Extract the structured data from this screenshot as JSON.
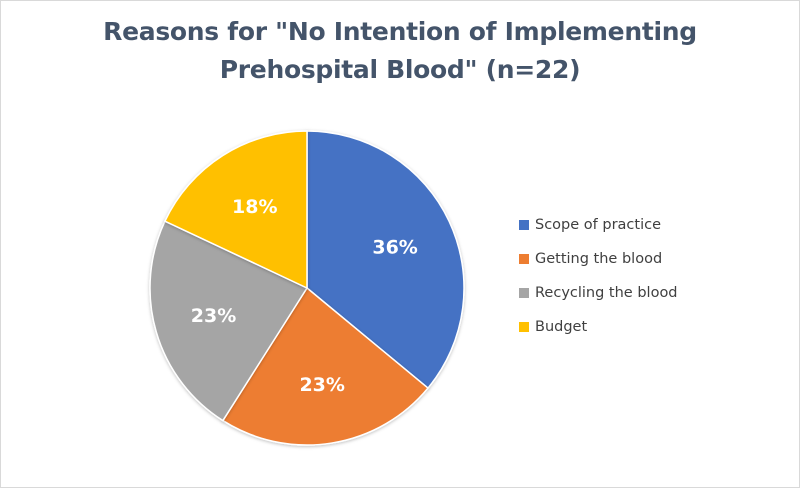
{
  "chart_data": {
    "type": "pie",
    "title": "Reasons for \"No Intention of Implementing Prehospital Blood\" (n=22)",
    "title_lines": [
      "Reasons for \"No Intention of Implementing",
      "Prehospital Blood\" (n=22)"
    ],
    "categories": [
      "Scope of practice",
      "Getting the blood",
      "Recycling the blood",
      "Budget"
    ],
    "values": [
      36,
      23,
      23,
      18
    ],
    "value_labels": [
      "36%",
      "23%",
      "23%",
      "18%"
    ],
    "colors": [
      "#4472c4",
      "#ed7d31",
      "#a5a5a5",
      "#ffc000"
    ],
    "legend_position": "right",
    "start_angle": "12 o'clock",
    "direction": "clockwise"
  }
}
